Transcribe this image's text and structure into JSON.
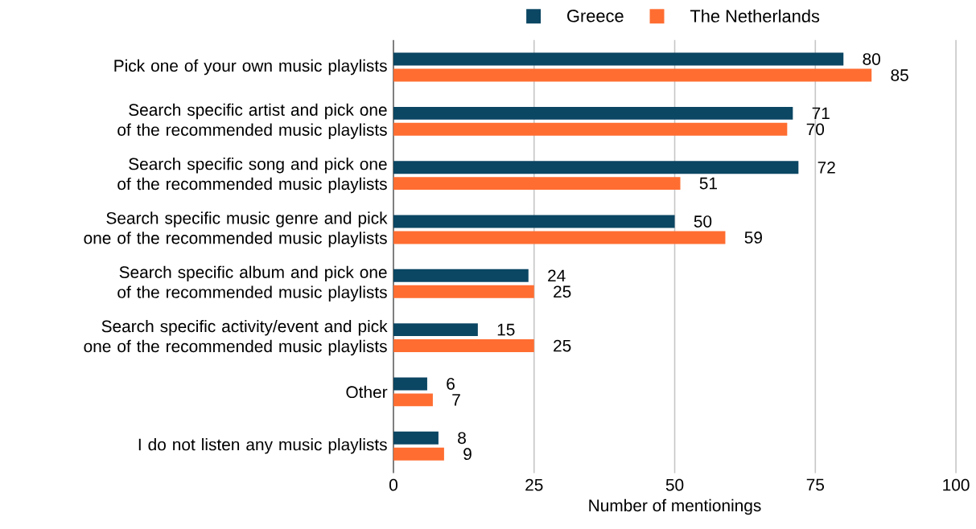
{
  "chart_data": {
    "type": "bar",
    "orientation": "horizontal",
    "xlabel": "Number of mentionings",
    "categories": [
      "Pick one of your own music playlists",
      "Search specific artist and pick one of the recommended music playlists",
      "Search specific song and pick one of the recommended music playlists",
      "Search specific music genre and pick one of the recommended music playlists",
      "Search specific album and pick one of the recommended music playlists",
      "Search specific activity/event and pick one of the recommended music playlists",
      "Other",
      "I do not listen any music playlists"
    ],
    "series": [
      {
        "name": "Greece",
        "color": "#0b4663",
        "values": [
          80,
          71,
          72,
          50,
          24,
          15,
          6,
          8
        ]
      },
      {
        "name": "The Netherlands",
        "color": "#ff6d31",
        "values": [
          85,
          70,
          51,
          59,
          25,
          25,
          7,
          9
        ]
      }
    ],
    "xlim": [
      0,
      100
    ],
    "xticks": [
      0,
      25,
      50,
      75,
      100
    ],
    "grid": "x",
    "legend": "top",
    "data_labels": true
  }
}
